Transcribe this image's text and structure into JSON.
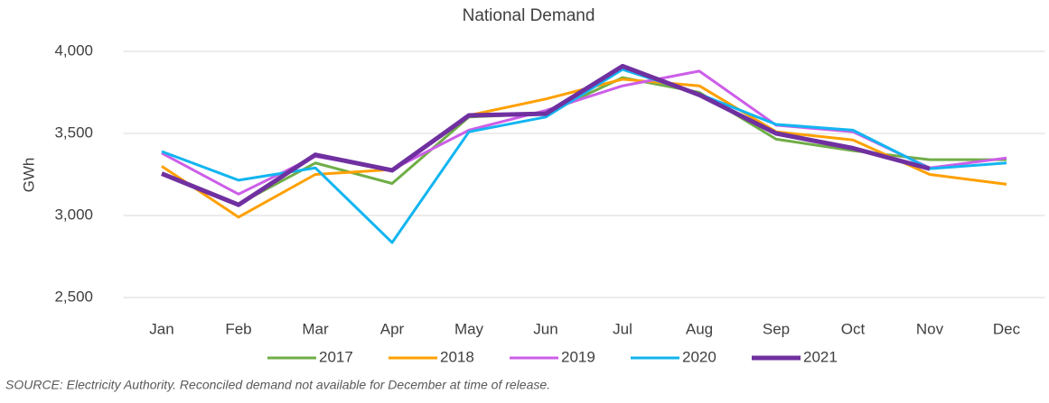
{
  "chart_data": {
    "type": "line",
    "title": "National Demand",
    "y_label": "GWh",
    "categories": [
      "Jan",
      "Feb",
      "Mar",
      "Apr",
      "May",
      "Jun",
      "Jul",
      "Aug",
      "Sep",
      "Oct",
      "Nov",
      "Dec"
    ],
    "series": [
      {
        "name": "2017",
        "color": "#70ad47",
        "values": [
          3250,
          3070,
          3320,
          3195,
          3600,
          3620,
          3840,
          3750,
          3465,
          3395,
          3340,
          3340
        ]
      },
      {
        "name": "2018",
        "color": "#ffa000",
        "values": [
          3300,
          2990,
          3250,
          3280,
          3610,
          3710,
          3830,
          3790,
          3510,
          3460,
          3250,
          3190
        ]
      },
      {
        "name": "2019",
        "color": "#cc5ee8",
        "values": [
          3380,
          3130,
          3360,
          3280,
          3520,
          3640,
          3790,
          3880,
          3550,
          3510,
          3290,
          3350
        ]
      },
      {
        "name": "2020",
        "color": "#12b5f0",
        "values": [
          3390,
          3215,
          3290,
          2835,
          3510,
          3600,
          3890,
          3740,
          3555,
          3520,
          3285,
          3320
        ]
      },
      {
        "name": "2021",
        "color": "#7030a0",
        "values": [
          3255,
          3065,
          3370,
          3275,
          3610,
          3620,
          3910,
          3735,
          3500,
          3410,
          3285,
          null
        ]
      }
    ],
    "ylim": [
      2500,
      4000
    ],
    "yticks": [
      {
        "value": 2500,
        "label": "2,500"
      },
      {
        "value": 3000,
        "label": "3,000"
      },
      {
        "value": 3500,
        "label": "3,500"
      },
      {
        "value": 4000,
        "label": "4,000"
      }
    ],
    "grid": true,
    "legend": "bottom",
    "source": "SOURCE: Electricity Authority. Reconciled demand not available for December at time of release."
  }
}
